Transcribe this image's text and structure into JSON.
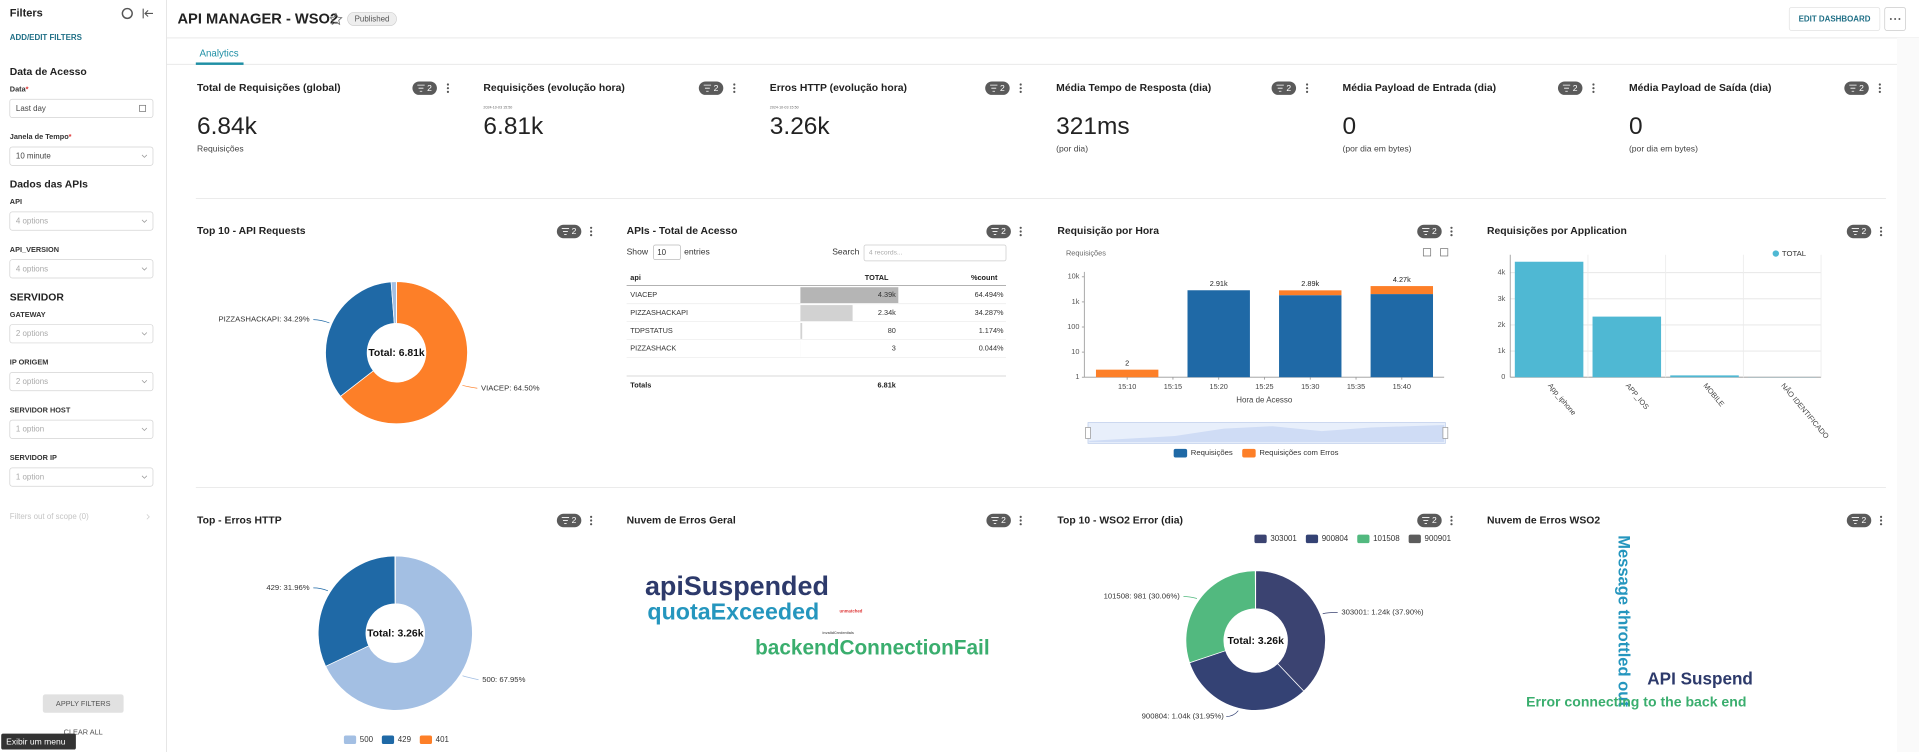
{
  "header": {
    "title": "API MANAGER - WSO2",
    "status": "Published",
    "edit_button": "EDIT DASHBOARD",
    "tab": "Analytics"
  },
  "sidebar": {
    "title": "Filters",
    "add_filters": "ADD/EDIT FILTERS",
    "groups": [
      {
        "title": "Data de Acesso",
        "fields": [
          {
            "label": "Data",
            "required": "*",
            "value": "Last day"
          },
          {
            "label": "Janela de Tempo",
            "required": "*",
            "value": "10 minute"
          }
        ]
      },
      {
        "title": "Dados das APIs",
        "fields": [
          {
            "label": "API",
            "value": "4 options"
          },
          {
            "label": "API_VERSION",
            "value": "4 options"
          }
        ]
      },
      {
        "title": "SERVIDOR",
        "fields": [
          {
            "label": "GATEWAY",
            "value": "2 options"
          },
          {
            "label": "IP ORIGEM",
            "value": "2 options"
          },
          {
            "label": "SERVIDOR HOST",
            "value": "1 option"
          },
          {
            "label": "SERVIDOR IP",
            "value": "1 option"
          }
        ]
      }
    ],
    "out_of_scope": "Filters out of scope (0)",
    "apply": "APPLY FILTERS",
    "clear": "CLEAR ALL",
    "tooltip": "Exibir um menu"
  },
  "kpis": [
    {
      "title": "Total de Requisições (global)",
      "badge": "2",
      "value": "6.84k",
      "subtitle": "Requisições"
    },
    {
      "title": "Requisições (evolução hora)",
      "badge": "2",
      "timestamp": "2024-10-03 15:50",
      "value": "6.81k"
    },
    {
      "title": "Erros HTTP (evolução hora)",
      "badge": "2",
      "timestamp": "2024-10-03 15:50",
      "value": "3.26k"
    },
    {
      "title": "Média Tempo de Resposta (dia)",
      "badge": "2",
      "value": "321ms",
      "subtitle": "(por dia)"
    },
    {
      "title": "Média Payload de Entrada (dia)",
      "badge": "2",
      "value": "0",
      "subtitle": "(por dia em bytes)"
    },
    {
      "title": "Média Payload de Saída (dia)",
      "badge": "2",
      "value": "0",
      "subtitle": "(por dia em bytes)"
    }
  ],
  "panels": {
    "top_api": {
      "title": "Top 10 - API Requests",
      "badge": "2",
      "type": "pie",
      "center_label": "Total: 6.81k",
      "slices": [
        {
          "label": "VIACEP: 64.50%",
          "value": 64.5,
          "color": "#fd7f28"
        },
        {
          "label": "PIZZASHACKAPI: 34.29%",
          "value": 34.29,
          "color": "#1f69a6"
        },
        {
          "label": null,
          "value": 1.174,
          "color": "#a3bfe3"
        },
        {
          "label": null,
          "value": 0.044,
          "color": "#3b4371"
        }
      ]
    },
    "table": {
      "title": "APIs - Total de Acesso",
      "badge": "2",
      "show": "Show",
      "entries_count": "10",
      "entries": "entries",
      "search": "Search",
      "search_placeholder": "4 records...",
      "columns": [
        "api",
        "TOTAL",
        "%count"
      ],
      "rows": [
        {
          "api": "VIACEP",
          "total": {
            "value": 4390,
            "label": "4.39k"
          },
          "count": "64.494%"
        },
        {
          "api": "PIZZASHACKAPI",
          "total": {
            "value": 2340,
            "label": "2.34k"
          },
          "count": "34.287%"
        },
        {
          "api": "TDPSTATUS",
          "total": {
            "value": 80,
            "label": "80"
          },
          "count": "1.174%"
        },
        {
          "api": "PIZZASHACK",
          "total": {
            "value": 3,
            "label": "3"
          },
          "count": "0.044%"
        }
      ],
      "totals_label": "Totals",
      "totals_value": "6.81k"
    },
    "hourly": {
      "title": "Requisição por Hora",
      "badge": "2",
      "type": "bar",
      "stacked": true,
      "log_y": true,
      "y_title": "Requisições",
      "x_title": "Hora de Acesso",
      "ylim": [
        1,
        10000
      ],
      "yticks": [
        1,
        10,
        100,
        {
          "value": 1000,
          "label": "1k"
        },
        {
          "value": 10000,
          "label": "10k"
        }
      ],
      "categories": [
        "15:10",
        "15:15",
        "15:20",
        "15:25",
        "15:30",
        "15:35",
        "15:40"
      ],
      "series": [
        {
          "name": "Requisições",
          "color": "#1f69a6",
          "values": [
            null,
            null,
            2910,
            null,
            1850,
            null,
            2050
          ]
        },
        {
          "name": "Requisições com Erros",
          "color": "#fd7f28",
          "values": [
            2,
            null,
            null,
            null,
            1040,
            null,
            2220
          ]
        }
      ],
      "bar_labels": [
        "2",
        null,
        "2.91k",
        null,
        "2.89k",
        null,
        "4.27k"
      ]
    },
    "apps": {
      "title": "Requisições por Application",
      "badge": "2",
      "type": "bar",
      "grid": true,
      "ylim": [
        0,
        4500
      ],
      "yticks": [
        0,
        {
          "value": 1000,
          "label": "1k"
        },
        {
          "value": 2000,
          "label": "2k"
        },
        {
          "value": 3000,
          "label": "3k"
        },
        {
          "value": 4000,
          "label": "4k"
        }
      ],
      "categories": [
        "App_iphone",
        "APP_IOS",
        "MOBILE",
        "NÃO IDENTIFICADO"
      ],
      "series": [
        {
          "name": "TOTAL",
          "color": "#4fb8d3",
          "values": [
            4420,
            2320,
            70,
            5
          ]
        }
      ]
    },
    "http_errors": {
      "title": "Top - Erros HTTP",
      "badge": "2",
      "type": "pie",
      "center_label": "Total: 3.26k",
      "slices": [
        {
          "name": "500",
          "label": "500: 67.95%",
          "value": 67.95,
          "color": "#a3bfe3"
        },
        {
          "name": "429",
          "label": "429: 31.96%",
          "value": 31.96,
          "color": "#1f69a6"
        },
        {
          "name": "401",
          "label": null,
          "value": 0.09,
          "color": "#fd7f28"
        }
      ]
    },
    "cloud_general": {
      "title": "Nuvem de Erros Geral",
      "badge": "2",
      "words": [
        "apiSuspended",
        "quotaExceeded",
        "backendConnectionFail",
        "unmatched",
        "invalidCredentials"
      ]
    },
    "wso2_errors": {
      "title": "Top 10 - WSO2 Error (dia)",
      "badge": "2",
      "type": "pie",
      "center_label": "Total: 3.26k",
      "slices": [
        {
          "name": "303001",
          "label": "303001: 1.24k (37.90%)",
          "value": 37.9,
          "color": "#3b4371"
        },
        {
          "name": "900804",
          "label": "900804: 1.04k (31.95%)",
          "value": 31.95,
          "color": "#344274"
        },
        {
          "name": "101508",
          "label": "101508: 981 (30.06%)",
          "value": 30.06,
          "color": "#52b97f"
        },
        {
          "name": "900901",
          "label": null,
          "value": 0.09,
          "color": "#5c5c5c"
        }
      ]
    },
    "cloud_wso2": {
      "title": "Nuvem de Erros WSO2",
      "badge": "2",
      "words": [
        "Message throttled out",
        "API Suspend",
        "Error connecting to the back end"
      ]
    }
  }
}
